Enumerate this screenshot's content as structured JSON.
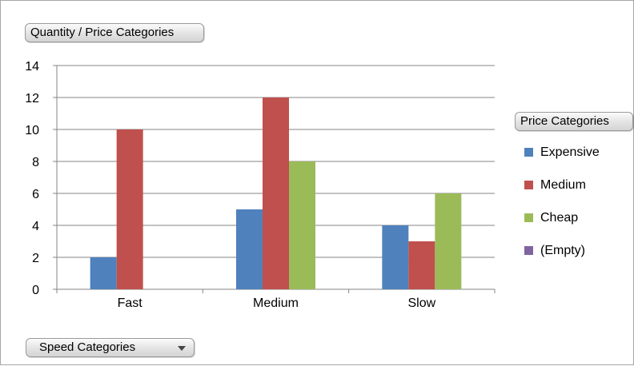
{
  "field_buttons": {
    "data_field": "Quantity / Price Categories",
    "series_field": "Price Categories",
    "axis_field": "Speed Categories"
  },
  "chart_data": {
    "type": "bar",
    "title": "",
    "xlabel": "",
    "ylabel": "",
    "ylim": [
      0,
      14
    ],
    "yticks": [
      0,
      2,
      4,
      6,
      8,
      10,
      12,
      14
    ],
    "categories": [
      "Fast",
      "Medium",
      "Slow"
    ],
    "series": [
      {
        "name": "Expensive",
        "color": "#4f81bd",
        "values": [
          2,
          5,
          4
        ]
      },
      {
        "name": "Medium",
        "color": "#c0504d",
        "values": [
          10,
          12,
          3
        ]
      },
      {
        "name": "Cheap",
        "color": "#9bbb59",
        "values": [
          null,
          8,
          6
        ]
      },
      {
        "name": "(Empty)",
        "color": "#8064a2",
        "values": [
          null,
          null,
          null
        ]
      }
    ],
    "grid": true,
    "legend_position": "right"
  }
}
